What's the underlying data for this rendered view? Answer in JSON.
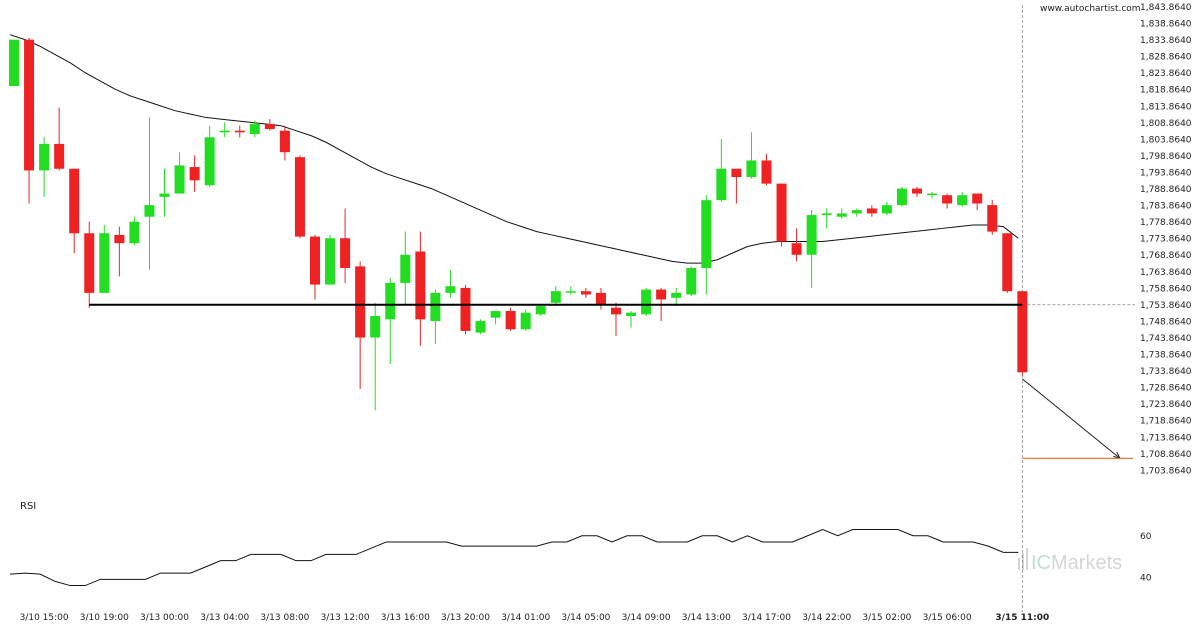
{
  "header": {
    "site": "www.autochartist.com"
  },
  "rsi_panel": {
    "label": "RSI",
    "levels": [
      60,
      40
    ]
  },
  "watermark": {
    "brand": "ICMarkets",
    "prefix": "IC",
    "suffix": "Markets"
  },
  "colors": {
    "bull": "#22dd22",
    "bear": "#ee2222",
    "level": "#000000",
    "target": "#e8783a",
    "grid": "#dddddd"
  },
  "chart_data": [
    {
      "type": "candlestick",
      "y_axis": {
        "range": [
          1701.864,
          1843.864
        ],
        "ticks": [
          "1,843.8640",
          "1,838.8640",
          "1,833.8640",
          "1,828.8640",
          "1,823.8640",
          "1,818.8640",
          "1,813.8640",
          "1,808.8640",
          "1,803.8640",
          "1,798.8640",
          "1,793.8640",
          "1,788.8640",
          "1,783.8640",
          "1,778.8640",
          "1,773.8640",
          "1,768.8640",
          "1,763.8640",
          "1,758.8640",
          "1,753.8640",
          "1,748.8640",
          "1,743.8640",
          "1,738.8640",
          "1,733.8640",
          "1,728.8640",
          "1,723.8640",
          "1,718.8640",
          "1,713.8640",
          "1,708.8640",
          "1,703.8640"
        ]
      },
      "x_labels": [
        "3/10 15:00",
        "3/10 19:00",
        "3/13 00:00",
        "3/13 04:00",
        "3/13 08:00",
        "3/13 12:00",
        "3/13 16:00",
        "3/13 20:00",
        "3/14 01:00",
        "3/14 05:00",
        "3/14 09:00",
        "3/14 13:00",
        "3/14 17:00",
        "3/14 22:00",
        "3/15 02:00",
        "3/15 06:00",
        "3/15 11:00"
      ],
      "x_label_candle_index": [
        2,
        6,
        10,
        14,
        18,
        22,
        26,
        30,
        34,
        38,
        42,
        46,
        50,
        54,
        58,
        62,
        67
      ],
      "highlight_label": "3/15 11:00",
      "candles": [
        {
          "o": 1820.0,
          "h": 1834.0,
          "l": 1820.0,
          "c": 1834.0
        },
        {
          "o": 1834.0,
          "h": 1834.5,
          "l": 1784.5,
          "c": 1794.5
        },
        {
          "o": 1794.5,
          "h": 1804.5,
          "l": 1786.5,
          "c": 1802.5
        },
        {
          "o": 1802.5,
          "h": 1813.5,
          "l": 1794.5,
          "c": 1795.0
        },
        {
          "o": 1795.0,
          "h": 1795.0,
          "l": 1769.5,
          "c": 1775.5
        },
        {
          "o": 1775.5,
          "h": 1779.0,
          "l": 1753.0,
          "c": 1757.5
        },
        {
          "o": 1757.5,
          "h": 1778.0,
          "l": 1757.5,
          "c": 1775.5
        },
        {
          "o": 1775.0,
          "h": 1777.5,
          "l": 1762.5,
          "c": 1772.5
        },
        {
          "o": 1772.5,
          "h": 1780.5,
          "l": 1772.0,
          "c": 1779.0
        },
        {
          "o": 1780.5,
          "h": 1810.5,
          "l": 1764.5,
          "c": 1784.0
        },
        {
          "o": 1786.5,
          "h": 1795.0,
          "l": 1780.5,
          "c": 1787.5
        },
        {
          "o": 1787.5,
          "h": 1800.0,
          "l": 1787.5,
          "c": 1796.0
        },
        {
          "o": 1795.5,
          "h": 1799.0,
          "l": 1788.0,
          "c": 1791.5
        },
        {
          "o": 1790.0,
          "h": 1808.0,
          "l": 1789.5,
          "c": 1804.5
        },
        {
          "o": 1806.0,
          "h": 1809.0,
          "l": 1804.5,
          "c": 1806.5
        },
        {
          "o": 1806.5,
          "h": 1808.0,
          "l": 1804.5,
          "c": 1806.0
        },
        {
          "o": 1805.5,
          "h": 1809.5,
          "l": 1804.5,
          "c": 1808.5
        },
        {
          "o": 1808.5,
          "h": 1810.0,
          "l": 1806.5,
          "c": 1807.0
        },
        {
          "o": 1806.5,
          "h": 1808.0,
          "l": 1797.5,
          "c": 1800.0
        },
        {
          "o": 1798.5,
          "h": 1799.0,
          "l": 1774.0,
          "c": 1774.5
        },
        {
          "o": 1774.5,
          "h": 1775.0,
          "l": 1755.5,
          "c": 1760.0
        },
        {
          "o": 1760.0,
          "h": 1775.0,
          "l": 1760.0,
          "c": 1774.0
        },
        {
          "o": 1774.0,
          "h": 1783.0,
          "l": 1760.5,
          "c": 1765.0
        },
        {
          "o": 1765.5,
          "h": 1767.0,
          "l": 1728.5,
          "c": 1744.0
        },
        {
          "o": 1744.0,
          "h": 1754.5,
          "l": 1722.0,
          "c": 1750.5
        },
        {
          "o": 1749.5,
          "h": 1762.0,
          "l": 1736.0,
          "c": 1760.5
        },
        {
          "o": 1760.5,
          "h": 1776.0,
          "l": 1754.0,
          "c": 1769.0
        },
        {
          "o": 1770.0,
          "h": 1776.0,
          "l": 1741.5,
          "c": 1749.5
        },
        {
          "o": 1749.0,
          "h": 1758.5,
          "l": 1742.0,
          "c": 1757.5
        },
        {
          "o": 1757.5,
          "h": 1764.5,
          "l": 1756.0,
          "c": 1759.5
        },
        {
          "o": 1759.0,
          "h": 1760.0,
          "l": 1745.0,
          "c": 1746.0
        },
        {
          "o": 1745.5,
          "h": 1749.5,
          "l": 1745.0,
          "c": 1749.0
        },
        {
          "o": 1750.0,
          "h": 1752.0,
          "l": 1748.0,
          "c": 1752.0
        },
        {
          "o": 1752.0,
          "h": 1753.0,
          "l": 1746.0,
          "c": 1746.5
        },
        {
          "o": 1746.5,
          "h": 1752.5,
          "l": 1746.0,
          "c": 1751.5
        },
        {
          "o": 1751.0,
          "h": 1754.0,
          "l": 1750.5,
          "c": 1753.5
        },
        {
          "o": 1754.5,
          "h": 1759.5,
          "l": 1753.5,
          "c": 1758.0
        },
        {
          "o": 1758.0,
          "h": 1759.5,
          "l": 1757.0,
          "c": 1758.0
        },
        {
          "o": 1758.0,
          "h": 1759.0,
          "l": 1756.0,
          "c": 1757.0
        },
        {
          "o": 1757.5,
          "h": 1759.0,
          "l": 1752.5,
          "c": 1754.0
        },
        {
          "o": 1753.0,
          "h": 1754.5,
          "l": 1744.5,
          "c": 1751.0
        },
        {
          "o": 1750.5,
          "h": 1752.0,
          "l": 1747.0,
          "c": 1751.5
        },
        {
          "o": 1751.0,
          "h": 1759.0,
          "l": 1750.5,
          "c": 1758.5
        },
        {
          "o": 1758.5,
          "h": 1759.0,
          "l": 1749.0,
          "c": 1755.5
        },
        {
          "o": 1756.0,
          "h": 1759.0,
          "l": 1753.5,
          "c": 1757.5
        },
        {
          "o": 1757.0,
          "h": 1765.5,
          "l": 1756.5,
          "c": 1765.0
        },
        {
          "o": 1765.0,
          "h": 1787.0,
          "l": 1757.0,
          "c": 1785.5
        },
        {
          "o": 1785.5,
          "h": 1804.0,
          "l": 1785.0,
          "c": 1795.0
        },
        {
          "o": 1795.0,
          "h": 1795.0,
          "l": 1784.5,
          "c": 1792.5
        },
        {
          "o": 1792.5,
          "h": 1806.0,
          "l": 1792.0,
          "c": 1797.5
        },
        {
          "o": 1797.5,
          "h": 1799.5,
          "l": 1790.0,
          "c": 1790.5
        },
        {
          "o": 1790.5,
          "h": 1790.5,
          "l": 1771.5,
          "c": 1773.0
        },
        {
          "o": 1772.5,
          "h": 1777.0,
          "l": 1767.0,
          "c": 1769.0
        },
        {
          "o": 1769.0,
          "h": 1782.5,
          "l": 1759.0,
          "c": 1781.0
        },
        {
          "o": 1781.0,
          "h": 1783.0,
          "l": 1777.0,
          "c": 1781.5
        },
        {
          "o": 1780.5,
          "h": 1783.0,
          "l": 1780.0,
          "c": 1781.5
        },
        {
          "o": 1781.5,
          "h": 1783.0,
          "l": 1780.5,
          "c": 1782.5
        },
        {
          "o": 1783.0,
          "h": 1784.0,
          "l": 1780.5,
          "c": 1781.5
        },
        {
          "o": 1781.5,
          "h": 1785.0,
          "l": 1781.0,
          "c": 1784.0
        },
        {
          "o": 1784.0,
          "h": 1789.5,
          "l": 1783.5,
          "c": 1789.0
        },
        {
          "o": 1789.0,
          "h": 1789.5,
          "l": 1786.5,
          "c": 1787.5
        },
        {
          "o": 1787.5,
          "h": 1788.0,
          "l": 1786.0,
          "c": 1787.5
        },
        {
          "o": 1787.0,
          "h": 1787.5,
          "l": 1783.0,
          "c": 1784.5
        },
        {
          "o": 1784.0,
          "h": 1788.0,
          "l": 1783.5,
          "c": 1787.0
        },
        {
          "o": 1787.5,
          "h": 1787.5,
          "l": 1782.5,
          "c": 1784.5
        },
        {
          "o": 1784.0,
          "h": 1785.5,
          "l": 1775.0,
          "c": 1776.0
        },
        {
          "o": 1775.5,
          "h": 1775.5,
          "l": 1757.5,
          "c": 1758.0
        },
        {
          "o": 1758.0,
          "h": 1758.0,
          "l": 1732.5,
          "c": 1733.5
        }
      ],
      "moving_average": [
        1835.5,
        1834.0,
        1832.0,
        1829.5,
        1827.0,
        1824.0,
        1821.5,
        1819.0,
        1817.0,
        1815.5,
        1814.0,
        1812.5,
        1811.5,
        1810.5,
        1810.0,
        1809.5,
        1809.0,
        1808.5,
        1808.0,
        1806.5,
        1805.0,
        1803.0,
        1800.5,
        1798.0,
        1795.5,
        1793.5,
        1792.0,
        1790.5,
        1789.0,
        1787.0,
        1785.0,
        1783.0,
        1781.0,
        1779.0,
        1777.5,
        1776.0,
        1775.0,
        1774.0,
        1773.0,
        1772.0,
        1771.0,
        1770.0,
        1769.0,
        1768.0,
        1767.0,
        1766.5,
        1766.5,
        1767.5,
        1769.5,
        1771.5,
        1772.5,
        1773.0,
        1773.0,
        1773.0,
        1773.0,
        1773.5,
        1774.0,
        1774.5,
        1775.0,
        1775.5,
        1776.0,
        1776.5,
        1777.0,
        1777.5,
        1778.0,
        1778.0,
        1777.5,
        1774.0
      ],
      "support_level": {
        "value": 1753.9,
        "start_candle_index": 5
      },
      "forecast": {
        "from": 1731.5,
        "to": 1707.5,
        "target_level": 1707.5,
        "target_end": "3/15 11:00"
      },
      "last_price_guide": 1753.9
    },
    {
      "type": "line",
      "name": "RSI",
      "y_range": [
        30,
        70
      ],
      "ticks": [
        60,
        40
      ],
      "values": [
        41.5,
        42.0,
        41.5,
        38.0,
        36.0,
        36.0,
        39.0,
        39.0,
        39.0,
        39.0,
        42.0,
        42.0,
        42.0,
        45.0,
        48.0,
        48.0,
        51.0,
        51.0,
        51.0,
        48.0,
        48.0,
        51.0,
        51.0,
        51.0,
        54.0,
        57.0,
        57.0,
        57.0,
        57.0,
        57.0,
        55.0,
        55.0,
        55.0,
        55.0,
        55.0,
        55.0,
        57.0,
        57.0,
        60.0,
        60.0,
        57.0,
        60.0,
        60.0,
        57.0,
        57.0,
        57.0,
        60.0,
        60.0,
        57.0,
        60.0,
        57.0,
        57.0,
        57.0,
        60.0,
        63.0,
        60.0,
        63.0,
        63.0,
        63.0,
        63.0,
        60.0,
        60.0,
        57.0,
        57.0,
        57.0,
        55.0,
        52.0,
        52.0
      ]
    }
  ]
}
